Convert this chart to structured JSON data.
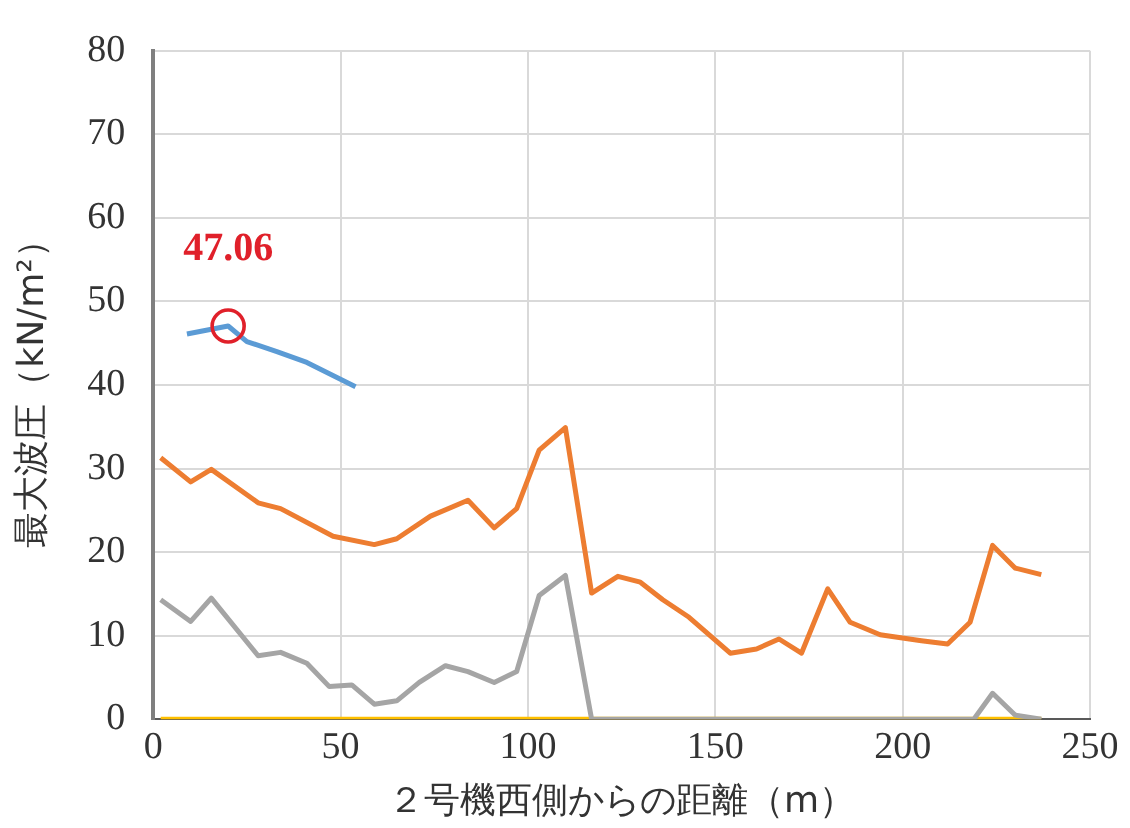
{
  "chart_data": {
    "type": "line",
    "xlabel": "２号機西側からの距離（m）",
    "ylabel": "最大波圧（kN/m²）",
    "xlim": [
      0,
      250
    ],
    "xticks": [
      0,
      50,
      100,
      150,
      200,
      250
    ],
    "ylim": [
      0,
      80
    ],
    "yticks": [
      0,
      10,
      20,
      30,
      40,
      50,
      60,
      70,
      80
    ],
    "grid": true,
    "legend": false,
    "marker": "none",
    "line_style": "solid",
    "annotations": [
      {
        "text": "47.06",
        "x": 20,
        "y": 47.06
      }
    ],
    "series": [
      {
        "color": "#5b9bd5",
        "x": [
          9,
          20,
          25,
          33,
          41,
          54
        ],
        "values": [
          46.1,
          47.06,
          45.2,
          44.0,
          42.7,
          39.8
        ]
      },
      {
        "color": "#ed7d31",
        "x": [
          2,
          10,
          15.5,
          28,
          34,
          48,
          59,
          65,
          74,
          84,
          91,
          97,
          103,
          110,
          117,
          124,
          130,
          136,
          143,
          154,
          161,
          167,
          173,
          180,
          186,
          194,
          205,
          212,
          218,
          224,
          230,
          237
        ],
        "values": [
          31.3,
          28.4,
          29.9,
          25.9,
          25.2,
          21.9,
          20.9,
          21.6,
          24.3,
          26.2,
          22.9,
          25.2,
          32.2,
          34.9,
          15.1,
          17.1,
          16.4,
          14.3,
          12.2,
          7.9,
          8.4,
          9.6,
          7.9,
          15.6,
          11.6,
          10.1,
          9.4,
          9.0,
          11.6,
          20.8,
          18.1,
          17.3
        ]
      },
      {
        "color": "#a5a5a5",
        "x": [
          2,
          10,
          15.5,
          28,
          34,
          41,
          47,
          53,
          59,
          65,
          71,
          78,
          84,
          91,
          97,
          103,
          110,
          117,
          219,
          224,
          230,
          237
        ],
        "values": [
          14.3,
          11.7,
          14.5,
          7.6,
          8.0,
          6.7,
          3.9,
          4.1,
          1.8,
          2.2,
          4.4,
          6.4,
          5.7,
          4.4,
          5.7,
          14.8,
          17.2,
          0,
          0,
          3.1,
          0.5,
          0
        ]
      },
      {
        "color": "#ffc000",
        "x": [
          2,
          237
        ],
        "values": [
          0,
          0
        ]
      }
    ]
  }
}
